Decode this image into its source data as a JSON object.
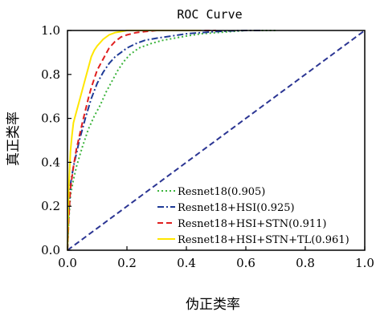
{
  "chart_data": {
    "type": "line",
    "title": "ROC Curve",
    "xlabel": "伪正类率",
    "ylabel": "真正类率",
    "xlim": [
      0,
      1
    ],
    "ylim": [
      0,
      1
    ],
    "xticks": [
      "0.0",
      "0.2",
      "0.4",
      "0.6",
      "0.8",
      "1.0"
    ],
    "yticks": [
      "0.0",
      "0.2",
      "0.4",
      "0.6",
      "0.8",
      "1.0"
    ],
    "grid": false,
    "legend_position": "bottom-right",
    "series": [
      {
        "name": "Resnet18(0.905)",
        "color": "#3cb43c",
        "dash": "dotted",
        "x": [
          0,
          0.005,
          0.01,
          0.02,
          0.03,
          0.05,
          0.07,
          0.09,
          0.11,
          0.13,
          0.15,
          0.17,
          0.19,
          0.21,
          0.24,
          0.28,
          0.32,
          0.36,
          0.4,
          0.45,
          0.5,
          0.55,
          0.6,
          0.65,
          0.7
        ],
        "y": [
          0,
          0.15,
          0.25,
          0.32,
          0.38,
          0.47,
          0.55,
          0.61,
          0.66,
          0.72,
          0.77,
          0.82,
          0.86,
          0.89,
          0.92,
          0.94,
          0.955,
          0.965,
          0.975,
          0.985,
          0.99,
          0.995,
          1.0,
          1.0,
          1.0
        ]
      },
      {
        "name": "Resnet18+HSI(0.925)",
        "color": "#1e3a96",
        "dash": "dashdot",
        "x": [
          0,
          0.005,
          0.01,
          0.02,
          0.04,
          0.06,
          0.08,
          0.1,
          0.12,
          0.14,
          0.16,
          0.18,
          0.2,
          0.23,
          0.26,
          0.3,
          0.35,
          0.4,
          0.45,
          0.5,
          0.55,
          0.6,
          0.65
        ],
        "y": [
          0,
          0.18,
          0.3,
          0.38,
          0.5,
          0.6,
          0.69,
          0.76,
          0.81,
          0.85,
          0.88,
          0.9,
          0.92,
          0.94,
          0.955,
          0.965,
          0.975,
          0.985,
          0.99,
          0.995,
          0.998,
          1.0,
          1.0
        ]
      },
      {
        "name": "Resnet18+HSI+STN(0.911)",
        "color": "#e01e1e",
        "dash": "dashed",
        "x": [
          0,
          0.005,
          0.01,
          0.02,
          0.03,
          0.05,
          0.07,
          0.08,
          0.09,
          0.1,
          0.12,
          0.14,
          0.16,
          0.18,
          0.2,
          0.23,
          0.26,
          0.3,
          0.35,
          0.4,
          0.45,
          0.5
        ],
        "y": [
          0,
          0.16,
          0.28,
          0.38,
          0.46,
          0.58,
          0.69,
          0.74,
          0.78,
          0.82,
          0.87,
          0.92,
          0.95,
          0.97,
          0.98,
          0.99,
          0.995,
          1.0,
          1.0,
          1.0,
          1.0,
          1.0
        ]
      },
      {
        "name": "Resnet18+HSI+STN+TL(0.961)",
        "color": "#ffe600",
        "dash": "solid",
        "x": [
          0,
          0.005,
          0.01,
          0.015,
          0.02,
          0.03,
          0.04,
          0.05,
          0.06,
          0.07,
          0.08,
          0.09,
          0.1,
          0.12,
          0.14,
          0.16,
          0.18,
          0.2,
          0.25,
          0.3,
          0.35,
          0.4,
          0.45
        ],
        "y": [
          0,
          0.3,
          0.45,
          0.52,
          0.58,
          0.63,
          0.68,
          0.73,
          0.78,
          0.83,
          0.88,
          0.91,
          0.93,
          0.96,
          0.98,
          0.99,
          0.995,
          1.0,
          1.0,
          1.0,
          1.0,
          1.0,
          1.0
        ]
      },
      {
        "name": "",
        "color": "#2b3593",
        "dash": "dashed",
        "x": [
          0,
          1
        ],
        "y": [
          0,
          1
        ]
      }
    ]
  }
}
